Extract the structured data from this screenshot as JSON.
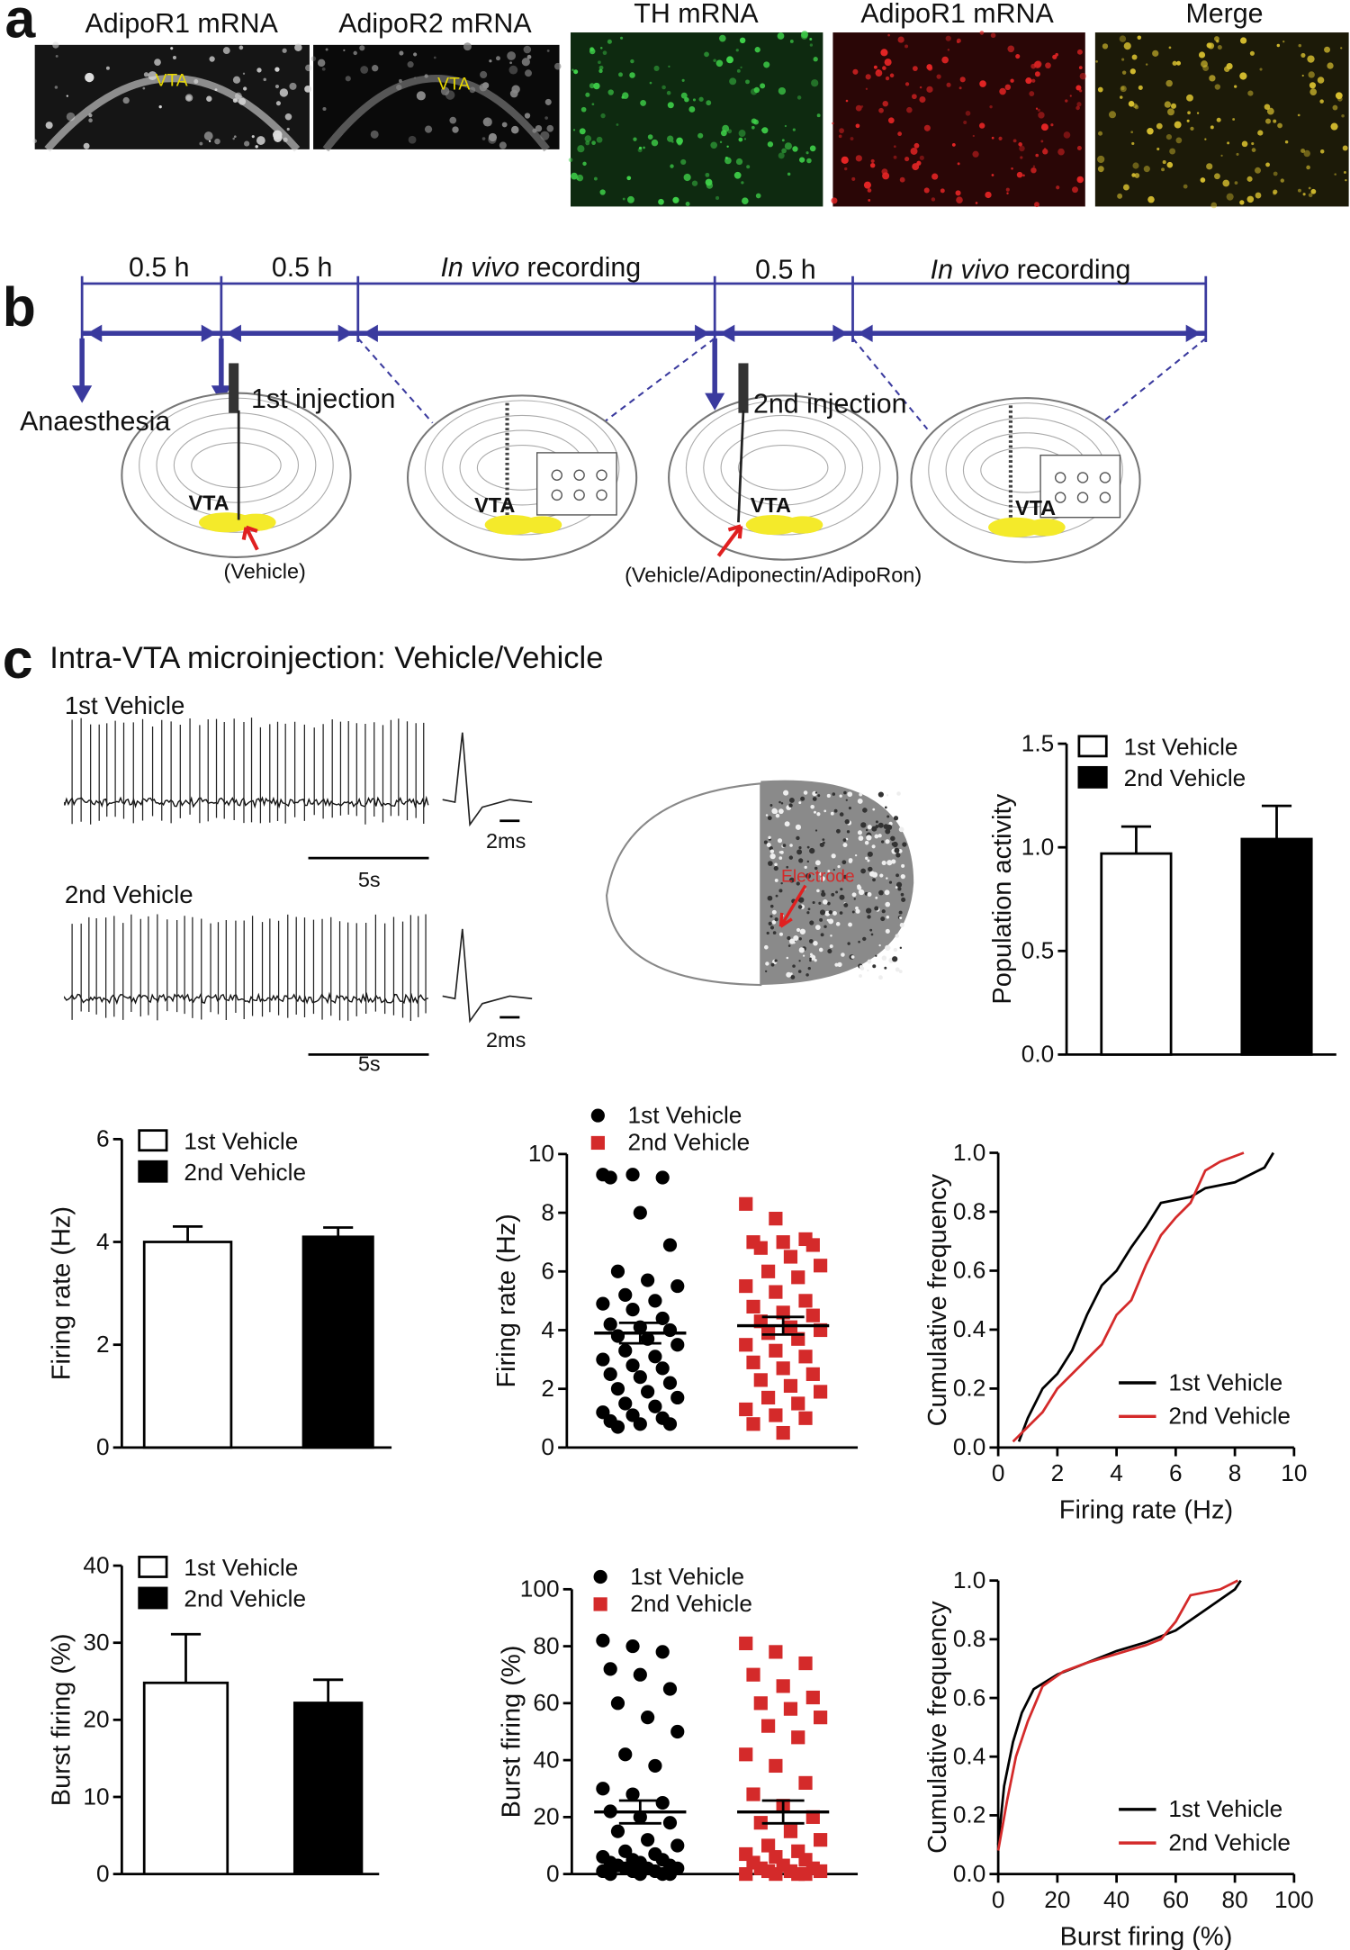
{
  "panel_a": {
    "label": "a",
    "images": [
      "AdipoR1 mRNA",
      "AdipoR2 mRNA",
      "TH mRNA",
      "AdipoR1 mRNA",
      "Merge"
    ],
    "region": [
      "VTA",
      "VTA"
    ]
  },
  "panel_b": {
    "label": "b",
    "intervals": [
      "0.5 h",
      "0.5 h",
      "0.5 h"
    ],
    "recordings": [
      {
        "italic": "In vivo",
        "text": "recording"
      },
      {
        "italic": "In vivo",
        "text": "recording"
      }
    ],
    "events": [
      "Anaesthesia",
      "1st injection",
      "2nd injection"
    ],
    "treatments": [
      "(Vehicle)",
      "(Vehicle/Adiponectin/AdipoRon)"
    ],
    "region": [
      "VTA",
      "VTA",
      "VTA",
      "VTA"
    ]
  },
  "panel_c": {
    "label": "c",
    "title": "Intra-VTA microinjection: Vehicle/Vehicle",
    "traces": [
      {
        "name": "1st Vehicle",
        "time_scale": "5s",
        "wave_scale": "2ms"
      },
      {
        "name": "2nd Vehicle",
        "time_scale": "5s",
        "wave_scale": "2ms"
      }
    ],
    "electrode": "Electrode"
  },
  "chart_data": [
    {
      "type": "bar",
      "y_label": "Population activity",
      "ylim": [
        0,
        1.5
      ],
      "yticks": [
        {
          "value": 0,
          "label": "0.0"
        },
        0.5,
        {
          "value": 1,
          "label": "1.0"
        },
        1.5
      ],
      "series": [
        {
          "name": "1st Vehicle",
          "color": "#ffffff",
          "values": [
            0.97
          ],
          "errors": [
            0.13
          ]
        },
        {
          "name": "2nd Vehicle",
          "color": "#000000",
          "values": [
            1.04
          ],
          "errors": [
            0.16
          ]
        }
      ]
    },
    {
      "type": "bar",
      "y_label": "Firing rate (Hz)",
      "ylim": [
        0,
        6
      ],
      "yticks": [
        0,
        2,
        4,
        6
      ],
      "series": [
        {
          "name": "1st Vehicle",
          "color": "#ffffff",
          "values": [
            4.0
          ],
          "errors": [
            0.3
          ]
        },
        {
          "name": "2nd Vehicle",
          "color": "#000000",
          "values": [
            4.1
          ],
          "errors": [
            0.18
          ]
        }
      ]
    },
    {
      "type": "strip",
      "y_label": "Firing rate (Hz)",
      "ylim": [
        0,
        10
      ],
      "yticks": [
        0,
        2,
        4,
        6,
        8,
        10
      ],
      "series": [
        {
          "name": "1st Vehicle",
          "color": "#000000",
          "marker": "circle",
          "mean": 3.9,
          "sem": 0.35,
          "values": [
            9.3,
            9.3,
            9.2,
            9.2,
            8.0,
            6.9,
            6.0,
            5.7,
            5.5,
            5.2,
            5.0,
            4.9,
            4.7,
            4.4,
            4.2,
            4.1,
            4.0,
            3.8,
            3.7,
            3.5,
            3.3,
            3.1,
            3.0,
            2.8,
            2.7,
            2.5,
            2.4,
            2.2,
            2.0,
            1.9,
            1.7,
            1.5,
            1.4,
            1.2,
            1.1,
            1.0,
            0.9,
            0.8,
            0.8,
            0.7
          ]
        },
        {
          "name": "2nd Vehicle",
          "color": "#d42a2a",
          "marker": "square",
          "mean": 4.15,
          "sem": 0.3,
          "values": [
            8.3,
            7.8,
            7.1,
            7.0,
            7.0,
            6.9,
            6.8,
            6.5,
            6.2,
            6.0,
            5.8,
            5.5,
            5.3,
            5.0,
            4.8,
            4.6,
            4.5,
            4.3,
            4.1,
            4.0,
            3.9,
            3.7,
            3.5,
            3.3,
            3.1,
            2.9,
            2.7,
            2.5,
            2.3,
            2.1,
            1.9,
            1.7,
            1.5,
            1.3,
            1.1,
            1.0,
            0.8,
            0.5
          ]
        }
      ]
    },
    {
      "type": "line",
      "y_label": "Cumulative frequency",
      "x_label": "Firing rate (Hz)",
      "xlim": [
        0,
        10
      ],
      "xticks": [
        0,
        2,
        4,
        6,
        8,
        10
      ],
      "ylim": [
        0,
        1
      ],
      "yticks": [
        {
          "value": 0,
          "label": "0.0"
        },
        0.2,
        0.4,
        0.6,
        0.8,
        {
          "value": 1,
          "label": "1.0"
        }
      ],
      "legend": "lower right",
      "series": [
        {
          "name": "1st Vehicle",
          "color": "#000000",
          "x": [
            0.7,
            1,
            1.5,
            2,
            2.5,
            3,
            3.5,
            4,
            4.5,
            5,
            5.5,
            6.5,
            7,
            8,
            9,
            9.3
          ],
          "values": [
            0.02,
            0.1,
            0.2,
            0.25,
            0.33,
            0.45,
            0.55,
            0.6,
            0.68,
            0.75,
            0.83,
            0.85,
            0.88,
            0.9,
            0.95,
            1.0
          ]
        },
        {
          "name": "2nd Vehicle",
          "color": "#d42a2a",
          "x": [
            0.5,
            1.5,
            2,
            3,
            3.5,
            4,
            4.5,
            5,
            5.5,
            6,
            6.5,
            7,
            7.5,
            8.3
          ],
          "values": [
            0.02,
            0.12,
            0.2,
            0.3,
            0.35,
            0.45,
            0.5,
            0.62,
            0.72,
            0.78,
            0.83,
            0.94,
            0.97,
            1.0
          ]
        }
      ]
    },
    {
      "type": "bar",
      "y_label": "Burst firing (%)",
      "ylim": [
        0,
        40
      ],
      "yticks": [
        0,
        10,
        20,
        30,
        40
      ],
      "series": [
        {
          "name": "1st Vehicle",
          "color": "#ffffff",
          "values": [
            24.8
          ],
          "errors": [
            6.3
          ]
        },
        {
          "name": "2nd Vehicle",
          "color": "#000000",
          "values": [
            22.2
          ],
          "errors": [
            3.0
          ]
        }
      ]
    },
    {
      "type": "strip",
      "y_label": "Burst firing (%)",
      "ylim": [
        0,
        100
      ],
      "yticks": [
        0,
        20,
        40,
        60,
        80,
        100
      ],
      "series": [
        {
          "name": "1st Vehicle",
          "color": "#000000",
          "marker": "circle",
          "mean": 21.8,
          "sem": 4,
          "values": [
            82,
            80,
            78,
            72,
            70,
            65,
            60,
            55,
            50,
            42,
            38,
            30,
            28,
            25,
            22,
            20,
            18,
            15,
            12,
            10,
            8,
            7,
            6,
            5,
            5,
            4,
            4,
            3,
            3,
            2,
            2,
            2,
            1,
            1,
            1,
            0,
            0,
            0,
            0
          ]
        },
        {
          "name": "2nd Vehicle",
          "color": "#d42a2a",
          "marker": "square",
          "mean": 21.8,
          "sem": 4,
          "values": [
            81,
            78,
            74,
            70,
            66,
            62,
            60,
            58,
            55,
            52,
            48,
            42,
            38,
            32,
            28,
            24,
            20,
            18,
            15,
            12,
            10,
            8,
            7,
            6,
            5,
            4,
            3,
            2,
            2,
            1,
            1,
            1,
            0,
            0,
            0,
            0
          ]
        }
      ]
    },
    {
      "type": "line",
      "y_label": "Cumulative frequency",
      "x_label": "Burst firing (%)",
      "xlim": [
        0,
        100
      ],
      "xticks": [
        0,
        20,
        40,
        60,
        80,
        100
      ],
      "ylim": [
        0,
        1
      ],
      "yticks": [
        {
          "value": 0,
          "label": "0.0"
        },
        0.2,
        0.4,
        0.6,
        0.8,
        {
          "value": 1,
          "label": "1.0"
        }
      ],
      "legend": "lower right",
      "series": [
        {
          "name": "1st Vehicle",
          "color": "#000000",
          "x": [
            0,
            2,
            5,
            8,
            12,
            20,
            30,
            40,
            50,
            60,
            70,
            80,
            82
          ],
          "values": [
            0.1,
            0.3,
            0.45,
            0.55,
            0.63,
            0.68,
            0.72,
            0.76,
            0.79,
            0.83,
            0.9,
            0.97,
            1.0
          ]
        },
        {
          "name": "2nd Vehicle",
          "color": "#d42a2a",
          "x": [
            0,
            3,
            6,
            10,
            15,
            22,
            30,
            40,
            50,
            55,
            60,
            65,
            75,
            81
          ],
          "values": [
            0.08,
            0.25,
            0.4,
            0.52,
            0.64,
            0.69,
            0.72,
            0.75,
            0.78,
            0.8,
            0.86,
            0.95,
            0.97,
            1.0
          ]
        }
      ]
    }
  ]
}
